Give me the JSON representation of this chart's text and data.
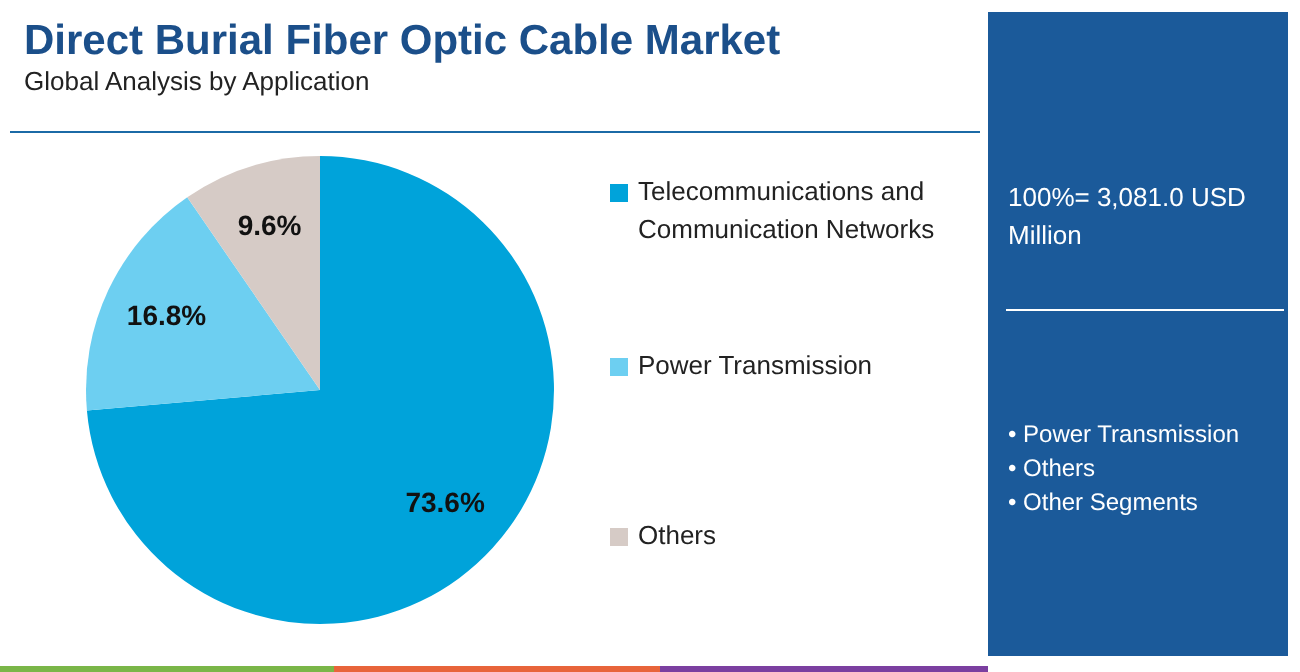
{
  "chart_data": {
    "type": "pie",
    "title": "Direct Burial Fiber Optic Cable Market",
    "subtitle": "Global Analysis by Application",
    "categories": [
      "Telecommunications and Communication Networks",
      "Power Transmission",
      "Others"
    ],
    "values": [
      73.6,
      16.8,
      9.6
    ],
    "colors": [
      "#00a3da",
      "#6dcff1",
      "#d6cbc6"
    ],
    "value_labels": [
      "73.6%",
      "16.8%",
      "9.6%"
    ],
    "legend": "right",
    "annotations": [
      "100%= 3,081.0 USD Million",
      "• Power Transmission",
      "• Others",
      "• Other Segments"
    ]
  }
}
